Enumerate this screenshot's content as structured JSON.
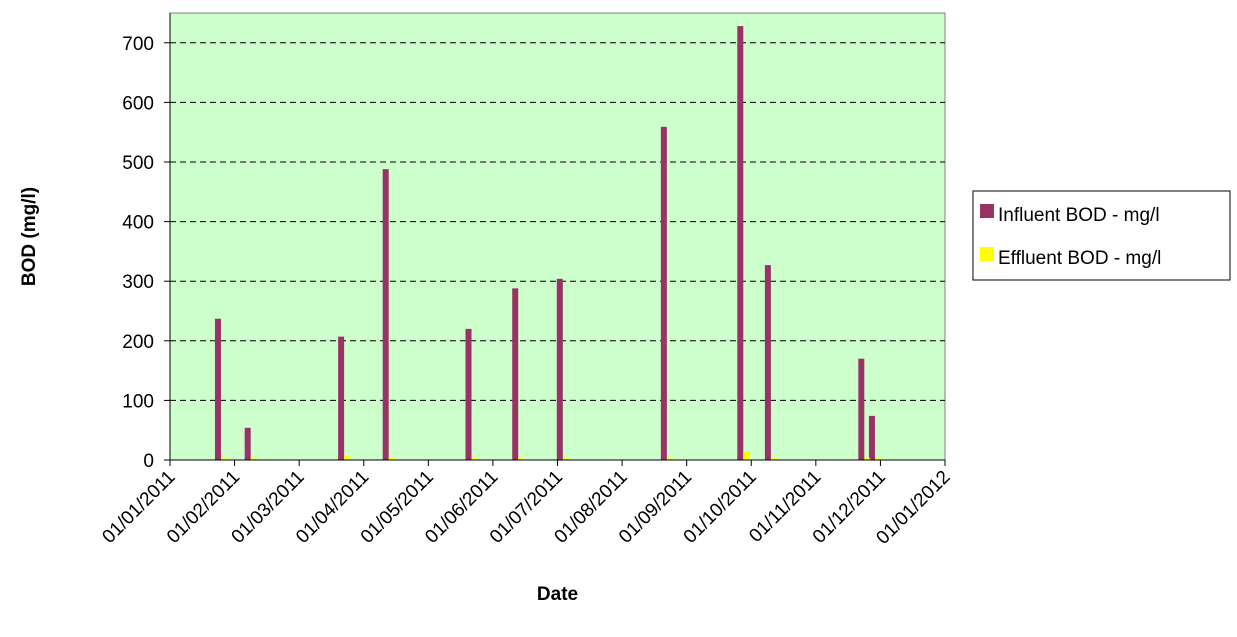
{
  "chart_data": {
    "type": "bar",
    "xlabel": "Date",
    "ylabel": "BOD (mg/l)",
    "ylim": [
      0,
      750
    ],
    "yticks": [
      0,
      100,
      200,
      300,
      400,
      500,
      600,
      700
    ],
    "xlim": [
      "2011-01-01",
      "2012-01-01"
    ],
    "xticks": [
      "01/01/2011",
      "01/02/2011",
      "01/03/2011",
      "01/04/2011",
      "01/05/2011",
      "01/06/2011",
      "01/07/2011",
      "01/08/2011",
      "01/09/2011",
      "01/10/2011",
      "01/11/2011",
      "01/12/2011",
      "01/01/2012"
    ],
    "grid": "horizontal dashed",
    "plot_background": "#ccffcc",
    "legend_position": "right",
    "series": [
      {
        "name": "Influent BOD - mg/l",
        "color": "#993366",
        "points": [
          {
            "date": "2011-01-25",
            "value": 237
          },
          {
            "date": "2011-02-08",
            "value": 54
          },
          {
            "date": "2011-03-24",
            "value": 207
          },
          {
            "date": "2011-04-14",
            "value": 488
          },
          {
            "date": "2011-05-23",
            "value": 220
          },
          {
            "date": "2011-06-14",
            "value": 288
          },
          {
            "date": "2011-07-05",
            "value": 304
          },
          {
            "date": "2011-08-23",
            "value": 559
          },
          {
            "date": "2011-09-28",
            "value": 728
          },
          {
            "date": "2011-10-11",
            "value": 327
          },
          {
            "date": "2011-11-24",
            "value": 170
          },
          {
            "date": "2011-11-29",
            "value": 74
          }
        ]
      },
      {
        "name": "Effluent BOD - mg/l",
        "color": "#ffff00",
        "points": [
          {
            "date": "2011-01-25",
            "value": 3
          },
          {
            "date": "2011-02-08",
            "value": 3
          },
          {
            "date": "2011-03-24",
            "value": 7
          },
          {
            "date": "2011-04-14",
            "value": 4
          },
          {
            "date": "2011-05-23",
            "value": 3
          },
          {
            "date": "2011-06-14",
            "value": 3
          },
          {
            "date": "2011-07-05",
            "value": 3
          },
          {
            "date": "2011-08-23",
            "value": 3
          },
          {
            "date": "2011-09-28",
            "value": 15
          },
          {
            "date": "2011-10-11",
            "value": 3
          },
          {
            "date": "2011-11-24",
            "value": 3
          },
          {
            "date": "2011-11-29",
            "value": 3
          }
        ]
      }
    ]
  }
}
